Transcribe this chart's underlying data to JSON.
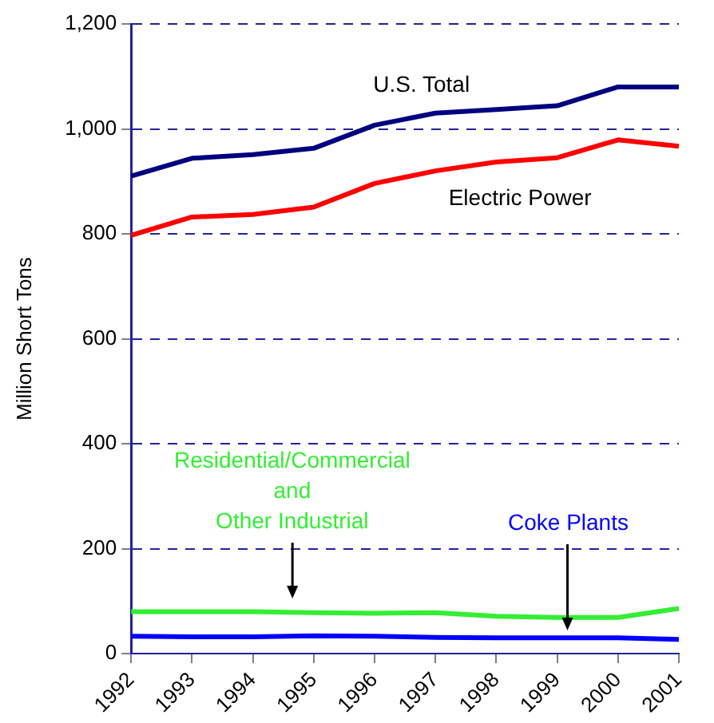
{
  "chart_data": {
    "type": "line",
    "ylabel": "Million Short Tons",
    "categories": [
      "1992",
      "1993",
      "1994",
      "1995",
      "1996",
      "1997",
      "1998",
      "1999",
      "2000",
      "2001"
    ],
    "series": [
      {
        "name": "U.S. Total",
        "color": "#000080",
        "values": [
          910,
          944,
          951,
          963,
          1007,
          1030,
          1037,
          1044,
          1080,
          1080
        ]
      },
      {
        "name": "Electric Power",
        "color": "#ff0000",
        "values": [
          797,
          832,
          837,
          851,
          896,
          920,
          937,
          945,
          979,
          967
        ]
      },
      {
        "name": "Residential/Commercial\nand\nOther Industrial",
        "color": "#33ee33",
        "values": [
          80,
          80,
          80,
          78,
          77,
          78,
          71,
          69,
          69,
          86
        ]
      },
      {
        "name": "Coke Plants",
        "color": "#0000ff",
        "values": [
          33,
          32,
          32,
          34,
          33,
          31,
          30,
          30,
          30,
          27
        ]
      }
    ],
    "ylim": [
      0,
      1200
    ],
    "yticks": [
      0,
      200,
      400,
      600,
      800,
      {
        "value": 1000,
        "label": "1,000"
      },
      {
        "value": 1200,
        "label": "1,200"
      }
    ],
    "grid": "y",
    "legend": false,
    "marker": "none",
    "line_style": "solid"
  }
}
